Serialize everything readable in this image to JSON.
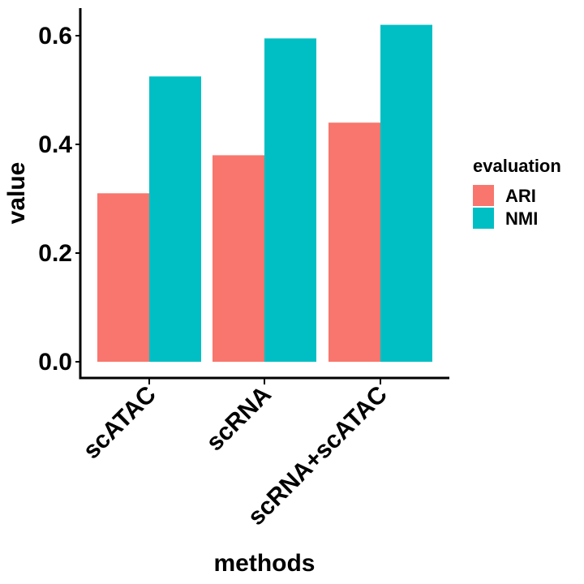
{
  "chart_data": {
    "type": "bar",
    "categories": [
      "scATAC",
      "scRNA",
      "scRNA+scATAC"
    ],
    "series": [
      {
        "name": "ARI",
        "color": "#F8766D",
        "values": [
          0.31,
          0.38,
          0.44
        ]
      },
      {
        "name": "NMI",
        "color": "#00BFC4",
        "values": [
          0.525,
          0.595,
          0.62
        ]
      }
    ],
    "xlabel": "methods",
    "ylabel": "value",
    "ylim": [
      0,
      0.62
    ],
    "yticks": [
      0.0,
      0.2,
      0.4,
      0.6
    ],
    "ytick_labels": [
      "0.0",
      "0.2",
      "0.4",
      "0.6"
    ],
    "legend": {
      "title": "evaluation",
      "placement": "right"
    },
    "grid": false
  }
}
